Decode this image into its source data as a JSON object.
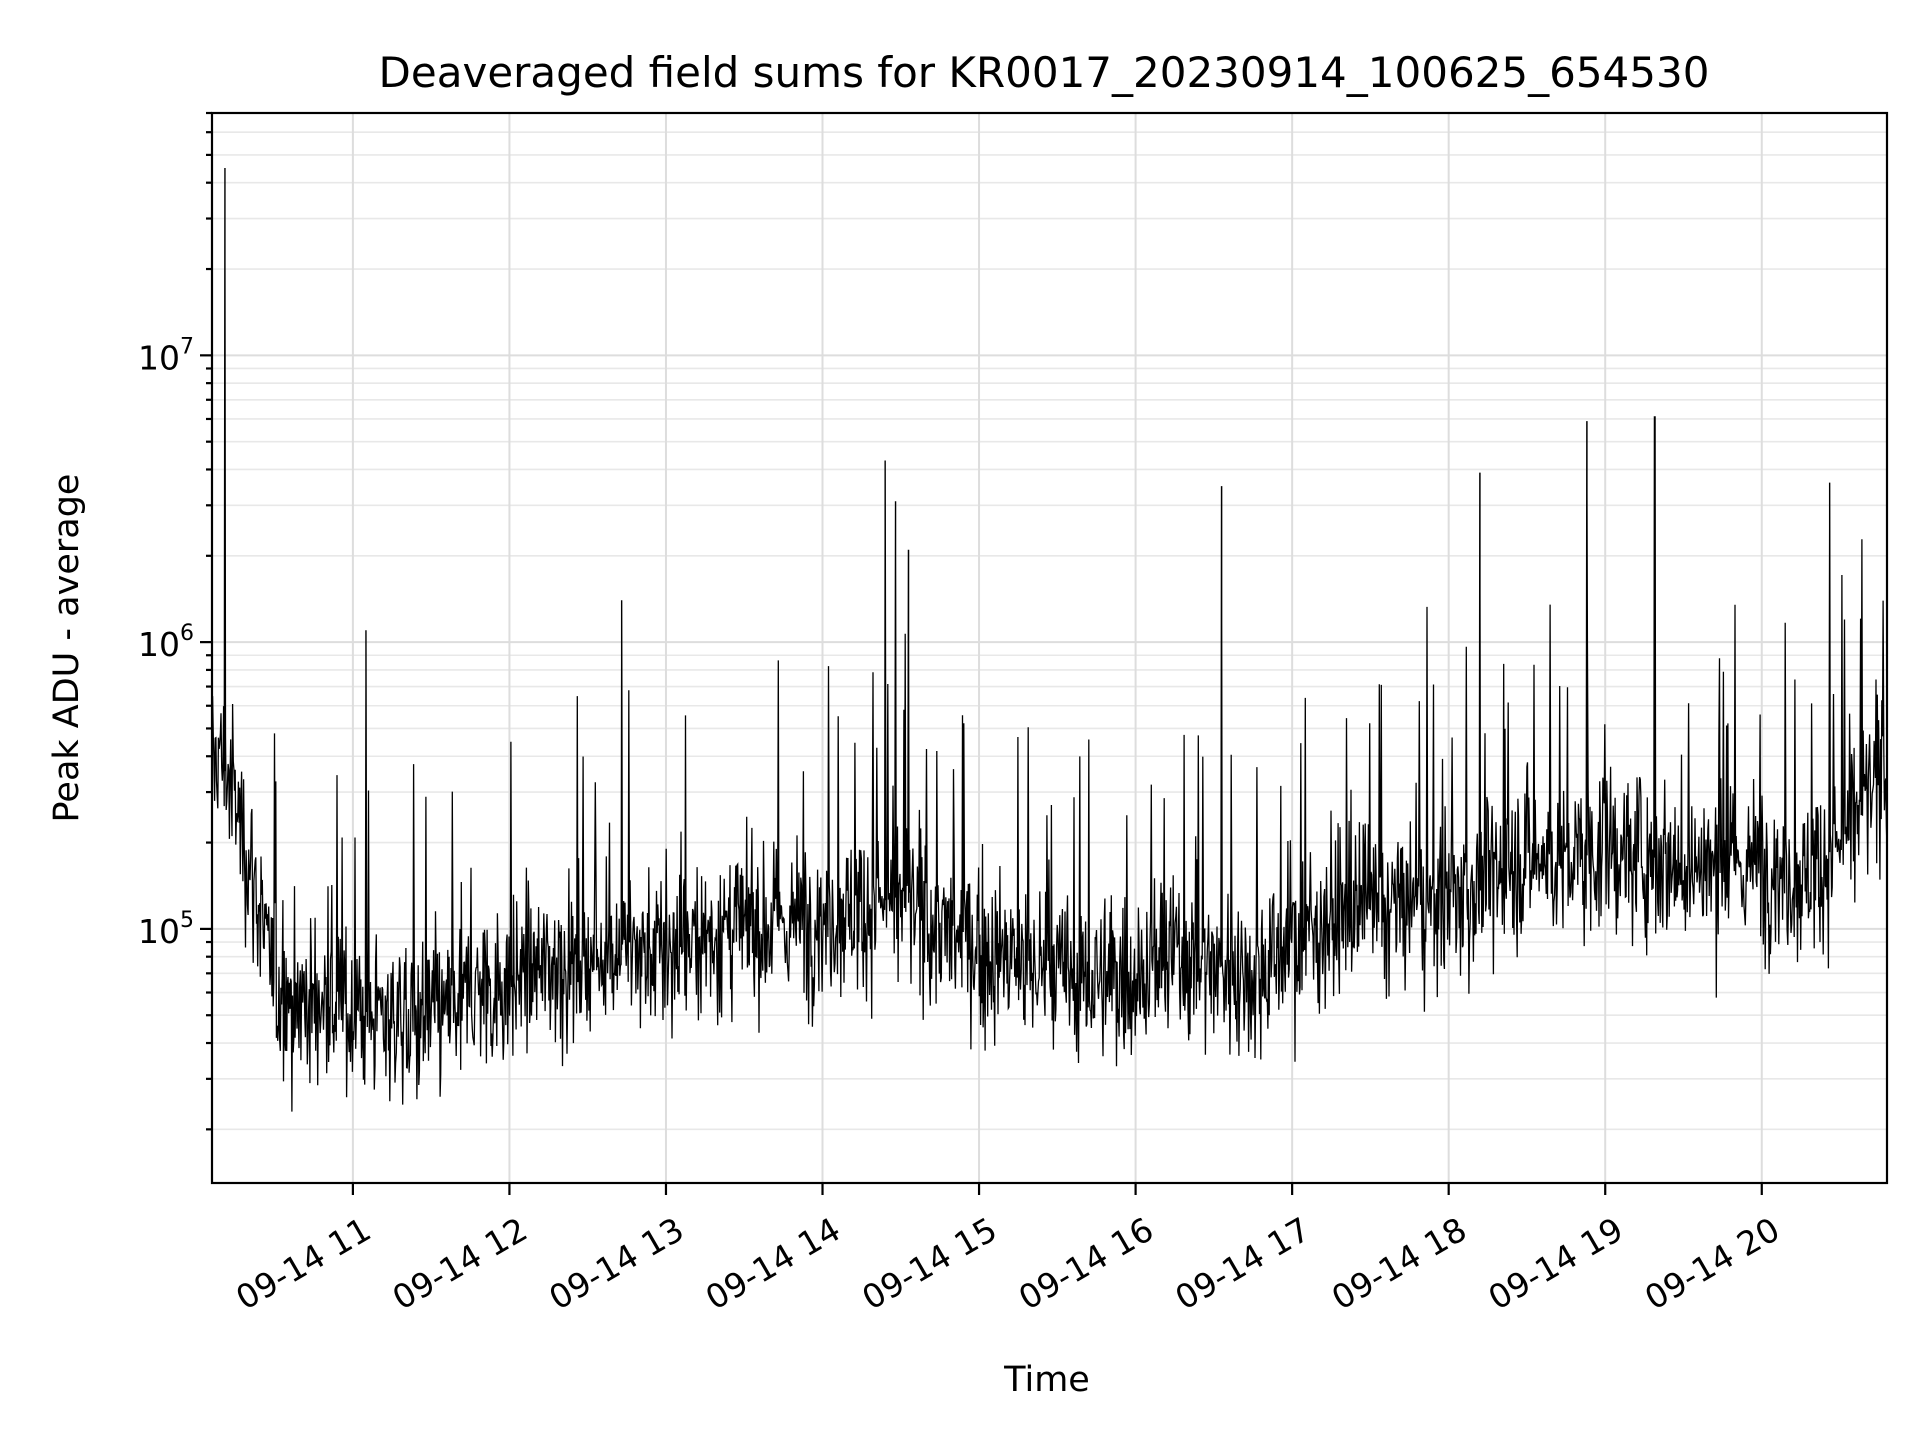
{
  "chart_data": {
    "type": "line",
    "title": "Deaveraged field sums for KR0017_20230914_100625_654530",
    "xlabel": "Time",
    "ylabel": "Peak ADU - average",
    "yscale": "log",
    "ylim": [
      13000,
      70000000
    ],
    "xlim": [
      "2023-09-14 10:06",
      "2023-09-14 20:48"
    ],
    "grid": true,
    "x_tick_labels": [
      "09-14 11",
      "09-14 12",
      "09-14 13",
      "09-14 14",
      "09-14 15",
      "09-14 16",
      "09-14 17",
      "09-14 18",
      "09-14 19",
      "09-14 20"
    ],
    "y_tick_labels": [
      {
        "base": "10",
        "exp": "5",
        "value": 100000
      },
      {
        "base": "10",
        "exp": "6",
        "value": 1000000
      },
      {
        "base": "10",
        "exp": "7",
        "value": 10000000
      }
    ],
    "series": [
      {
        "color": "#000000",
        "x": [
          "2023-09-14 10:06",
          "2023-09-14 10:08",
          "2023-09-14 10:14",
          "2023-09-14 10:22",
          "2023-09-14 10:30",
          "2023-09-14 10:45",
          "2023-09-14 11:00",
          "2023-09-14 11:15",
          "2023-09-14 11:30",
          "2023-09-14 11:45",
          "2023-09-14 12:00",
          "2023-09-14 12:15",
          "2023-09-14 12:30",
          "2023-09-14 12:45",
          "2023-09-14 13:00",
          "2023-09-14 13:15",
          "2023-09-14 13:30",
          "2023-09-14 13:45",
          "2023-09-14 14:00",
          "2023-09-14 14:15",
          "2023-09-14 14:30",
          "2023-09-14 14:45",
          "2023-09-14 15:00",
          "2023-09-14 15:15",
          "2023-09-14 15:30",
          "2023-09-14 15:45",
          "2023-09-14 16:00",
          "2023-09-14 16:15",
          "2023-09-14 16:30",
          "2023-09-14 16:45",
          "2023-09-14 17:00",
          "2023-09-14 17:15",
          "2023-09-14 17:30",
          "2023-09-14 17:45",
          "2023-09-14 18:00",
          "2023-09-14 18:15",
          "2023-09-14 18:30",
          "2023-09-14 18:45",
          "2023-09-14 19:00",
          "2023-09-14 19:15",
          "2023-09-14 19:30",
          "2023-09-14 19:45",
          "2023-09-14 20:00",
          "2023-09-14 20:15",
          "2023-09-14 20:30",
          "2023-09-14 20:48"
        ],
        "y": [
          350000,
          420000,
          300000,
          150000,
          60000,
          55000,
          52000,
          50000,
          48000,
          60000,
          65000,
          75000,
          80000,
          85000,
          80000,
          95000,
          100000,
          105000,
          110000,
          120000,
          130000,
          100000,
          85000,
          75000,
          70000,
          65000,
          70000,
          80000,
          75000,
          70000,
          90000,
          110000,
          115000,
          120000,
          125000,
          150000,
          180000,
          170000,
          190000,
          180000,
          170000,
          160000,
          170000,
          150000,
          200000,
          380000
        ],
        "spikes": [
          {
            "x": "2023-09-14 10:11",
            "y": 45000000
          },
          {
            "x": "2023-09-14 10:11",
            "y": 5000000
          },
          {
            "x": "2023-09-14 11:05",
            "y": 1100000
          },
          {
            "x": "2023-09-14 12:43",
            "y": 1400000
          },
          {
            "x": "2023-09-14 14:24",
            "y": 4300000
          },
          {
            "x": "2023-09-14 14:28",
            "y": 3100000
          },
          {
            "x": "2023-09-14 14:33",
            "y": 2100000
          },
          {
            "x": "2023-09-14 16:33",
            "y": 3500000
          },
          {
            "x": "2023-09-14 18:12",
            "y": 3900000
          },
          {
            "x": "2023-09-14 18:53",
            "y": 5900000
          },
          {
            "x": "2023-09-14 19:19",
            "y": 6100000
          },
          {
            "x": "2023-09-14 20:26",
            "y": 3600000
          }
        ]
      }
    ]
  }
}
